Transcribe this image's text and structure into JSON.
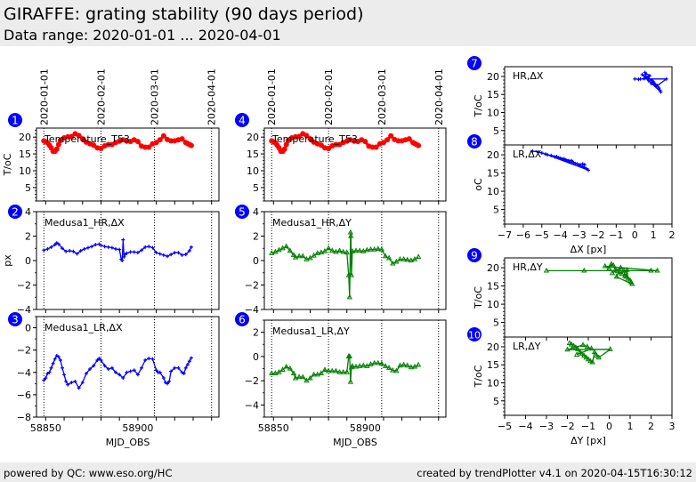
{
  "header": {
    "title": "GIRAFFE: grating stability (90 days period)",
    "subtitle": "Data range: 2020-01-01 ... 2020-04-01"
  },
  "footer": {
    "left": "powered by QC: www.eso.org/HC",
    "right": "created by trendPlotter v4.1 on 2020-04-15T16:30:12"
  },
  "colors": {
    "temperature": "#ff0000",
    "dx": "#0000ff",
    "dy": "#008000",
    "badge": "#0000ff"
  },
  "chart_data": [
    {
      "id": 1,
      "type": "line",
      "label": "Temperature_T53",
      "ylabel": "T/oC",
      "xlabel": "",
      "xlim": [
        58845,
        58944
      ],
      "ylim": [
        1,
        22.7
      ],
      "yticks": [
        5,
        10,
        15,
        20
      ],
      "xticks": [
        58850,
        58900
      ],
      "show_xticklabels": false,
      "top_date_ticks": [
        {
          "mjd": 58849,
          "label": "2020-01-01"
        },
        {
          "mjd": 58880,
          "label": "2020-02-01"
        },
        {
          "mjd": 58909,
          "label": "2020-03-01"
        },
        {
          "mjd": 58940,
          "label": "2020-04-01"
        }
      ],
      "series": [
        {
          "name": "Temperature_T53",
          "color": "#ff0000",
          "marker": "circle",
          "x": [
            58849,
            58850,
            58851,
            58852,
            58853,
            58854,
            58855,
            58856,
            58857,
            58858,
            58860,
            58862,
            58864,
            58866,
            58868,
            58870,
            58872,
            58874,
            58876,
            58878,
            58880,
            58882,
            58884,
            58886,
            58888,
            58890,
            58892,
            58894,
            58896,
            58898,
            58900,
            58902,
            58904,
            58906,
            58908,
            58910,
            58912,
            58914,
            58916,
            58918,
            58920,
            58922,
            58924,
            58926,
            58927,
            58928,
            58929
          ],
          "y": [
            18.9,
            18.6,
            18.3,
            17.6,
            16.8,
            15.8,
            15.8,
            16.4,
            17.8,
            19.0,
            19.8,
            20.1,
            20.2,
            21.0,
            20.5,
            19.5,
            18.5,
            18.0,
            17.6,
            16.8,
            16.6,
            17.4,
            17.8,
            17.8,
            18.4,
            18.8,
            19.2,
            18.8,
            18.7,
            19.2,
            18.7,
            17.3,
            17.0,
            17.0,
            18.0,
            18.4,
            19.2,
            20.4,
            19.3,
            18.9,
            18.9,
            19.2,
            19.5,
            18.4,
            18.1,
            17.8,
            17.5
          ]
        }
      ]
    },
    {
      "id": 2,
      "type": "line",
      "label": "Medusa1_HR,ΔX",
      "ylabel": "px",
      "xlabel": "",
      "xlim": [
        58845,
        58944
      ],
      "ylim": [
        -4,
        4
      ],
      "yticks": [
        -4,
        -2,
        0,
        2,
        4
      ],
      "xticks": [
        58850,
        58900
      ],
      "show_xticklabels": false,
      "series": [
        {
          "name": "Medusa1_HR,ΔX",
          "color": "#0000ff",
          "marker": "plus",
          "x": [
            58849,
            58851,
            58853,
            58855,
            58856,
            58857,
            58859,
            58861,
            58863,
            58865,
            58867,
            58869,
            58871,
            58873,
            58875,
            58877,
            58879,
            58880,
            58882,
            58884,
            58886,
            58888,
            58890,
            58891,
            58891.5,
            58892,
            58892.5,
            58893,
            58894,
            58896,
            58898,
            58900,
            58902,
            58904,
            58906,
            58908,
            58910,
            58912,
            58914,
            58916,
            58918,
            58920,
            58922,
            58924,
            58926,
            58928,
            58929
          ],
          "y": [
            0.85,
            0.95,
            1.1,
            1.3,
            1.45,
            1.35,
            1.0,
            0.75,
            0.8,
            0.75,
            0.55,
            0.8,
            0.95,
            1.05,
            1.15,
            1.3,
            1.35,
            1.25,
            1.15,
            1.1,
            1.05,
            0.95,
            0.9,
            0.1,
            0.0,
            1.7,
            0.3,
            0.5,
            0.6,
            0.7,
            0.7,
            0.65,
            0.85,
            1.1,
            1.15,
            1.05,
            0.65,
            0.55,
            0.45,
            0.35,
            0.5,
            0.65,
            0.65,
            0.45,
            0.5,
            0.8,
            1.1
          ]
        }
      ]
    },
    {
      "id": 3,
      "type": "line",
      "label": "Medusa1_LR,ΔX",
      "ylabel": "",
      "xlabel": "MJD_OBS",
      "xlim": [
        58845,
        58944
      ],
      "ylim": [
        -8,
        1
      ],
      "yticks": [
        -8,
        -6,
        -4,
        -2,
        0
      ],
      "xticks": [
        58850,
        58900
      ],
      "show_xticklabels": true,
      "series": [
        {
          "name": "Medusa1_LR,ΔX",
          "color": "#0000ff",
          "marker": "plus",
          "x": [
            58849,
            58850,
            58851,
            58852,
            58853,
            58854,
            58855,
            58856,
            58857,
            58858,
            58859,
            58860,
            58861,
            58862,
            58864,
            58866,
            58868,
            58870,
            58872,
            58874,
            58876,
            58878,
            58879,
            58880,
            58882,
            58884,
            58886,
            58888,
            58890,
            58892,
            58894,
            58896,
            58898,
            58900,
            58902,
            58904,
            58906,
            58908,
            58910,
            58911,
            58912,
            58914,
            58915,
            58916,
            58917,
            58918,
            58920,
            58922,
            58924,
            58925,
            58926,
            58927,
            58928,
            58929
          ],
          "y": [
            -4.7,
            -4.5,
            -4.1,
            -4.0,
            -3.6,
            -3.2,
            -2.8,
            -2.5,
            -2.6,
            -2.9,
            -3.6,
            -4.2,
            -4.8,
            -5.1,
            -4.9,
            -4.8,
            -5.4,
            -4.9,
            -4.1,
            -3.7,
            -3.4,
            -2.9,
            -2.75,
            -2.9,
            -3.4,
            -3.7,
            -3.6,
            -4.0,
            -4.2,
            -4.5,
            -4.0,
            -3.9,
            -3.8,
            -4.2,
            -3.6,
            -2.9,
            -2.75,
            -2.8,
            -3.8,
            -4.0,
            -4.0,
            -4.5,
            -4.9,
            -5.0,
            -4.8,
            -3.9,
            -3.6,
            -3.6,
            -4.0,
            -4.1,
            -3.6,
            -3.3,
            -3.0,
            -2.7
          ]
        }
      ]
    },
    {
      "id": 4,
      "type": "line",
      "label": "Temperature_T53",
      "ylabel": "",
      "xlabel": "",
      "xlim": [
        58845,
        58944
      ],
      "ylim": [
        1,
        22.7
      ],
      "yticks": [
        5,
        10,
        15,
        20
      ],
      "xticks": [
        58850,
        58900
      ],
      "show_xticklabels": false,
      "top_date_ticks": [
        {
          "mjd": 58849,
          "label": "2020-01-01"
        },
        {
          "mjd": 58880,
          "label": "2020-02-01"
        },
        {
          "mjd": 58909,
          "label": "2020-03-01"
        },
        {
          "mjd": 58940,
          "label": "2020-04-01"
        }
      ],
      "series": [
        {
          "name": "Temperature_T53",
          "color": "#ff0000",
          "marker": "circle",
          "same_as_panel": 1
        }
      ]
    },
    {
      "id": 5,
      "type": "line",
      "label": "Medusa1_HR,ΔY",
      "ylabel": "",
      "xlabel": "",
      "xlim": [
        58845,
        58944
      ],
      "ylim": [
        -4,
        4
      ],
      "yticks": [
        -4,
        -2,
        0,
        2,
        4
      ],
      "xticks": [
        58850,
        58900
      ],
      "show_xticklabels": false,
      "series": [
        {
          "name": "Medusa1_HR,ΔY",
          "color": "#008000",
          "marker": "triangle",
          "x": [
            58849,
            58851,
            58853,
            58855,
            58857,
            58859,
            58861,
            58862,
            58864,
            58866,
            58868,
            58870,
            58872,
            58874,
            58876,
            58878,
            58880,
            58882,
            58884,
            58886,
            58888,
            58890,
            58891,
            58891.5,
            58892,
            58892.2,
            58892.5,
            58893,
            58895,
            58897,
            58899,
            58901,
            58903,
            58905,
            58907,
            58909,
            58911,
            58913,
            58915,
            58917,
            58919,
            58921,
            58923,
            58925,
            58927,
            58929
          ],
          "y": [
            0.6,
            0.7,
            0.85,
            1.0,
            1.15,
            0.8,
            0.45,
            0.25,
            0.35,
            0.35,
            0.1,
            0.2,
            0.4,
            0.6,
            0.65,
            0.75,
            1.0,
            0.8,
            0.7,
            0.8,
            0.7,
            0.65,
            -1.2,
            -3.0,
            2.3,
            2.0,
            -1.2,
            0.75,
            0.8,
            0.8,
            0.75,
            0.85,
            0.9,
            0.9,
            0.95,
            0.9,
            0.35,
            0.2,
            -0.25,
            -0.1,
            0.1,
            0.1,
            0.05,
            0.0,
            0.1,
            0.3
          ]
        }
      ]
    },
    {
      "id": 6,
      "type": "line",
      "label": "Medusa1_LR,ΔY",
      "ylabel": "",
      "xlabel": "MJD_OBS",
      "xlim": [
        58845,
        58944
      ],
      "ylim": [
        -5,
        3
      ],
      "yticks": [
        -4,
        -2,
        0,
        2
      ],
      "xticks": [
        58850,
        58900
      ],
      "show_xticklabels": true,
      "series": [
        {
          "name": "Medusa1_LR,ΔY",
          "color": "#008000",
          "marker": "triangle",
          "x": [
            58849,
            58851,
            58853,
            58855,
            58857,
            58859,
            58861,
            58862,
            58864,
            58866,
            58868,
            58870,
            58872,
            58874,
            58876,
            58878,
            58880,
            58882,
            58884,
            58886,
            58888,
            58890,
            58891,
            58891.5,
            58892,
            58892.5,
            58893,
            58895,
            58897,
            58899,
            58901,
            58903,
            58905,
            58907,
            58909,
            58911,
            58913,
            58915,
            58917,
            58919,
            58921,
            58923,
            58925,
            58927,
            58929
          ],
          "y": [
            -1.4,
            -1.4,
            -1.3,
            -1.1,
            -0.85,
            -1.0,
            -1.4,
            -1.8,
            -1.7,
            -1.7,
            -2.0,
            -1.8,
            -1.5,
            -1.5,
            -1.4,
            -1.1,
            -1.2,
            -1.2,
            -1.2,
            -1.3,
            -1.3,
            -1.3,
            0.0,
            0.0,
            -2.1,
            -0.9,
            -0.8,
            -0.85,
            -0.8,
            -0.75,
            -0.8,
            -0.65,
            -0.55,
            -0.55,
            -0.6,
            -0.8,
            -0.95,
            -1.15,
            -1.2,
            -0.75,
            -0.7,
            -0.75,
            -0.9,
            -0.85,
            -0.7
          ]
        }
      ]
    },
    {
      "id": 7,
      "type": "scatter",
      "label": "HR,ΔX",
      "ylabel": "T/oC",
      "xlabel": "",
      "xlim": [
        -7,
        2
      ],
      "ylim": [
        1,
        22.7
      ],
      "yticks": [
        5,
        10,
        15,
        20
      ],
      "xticks": [
        -7,
        -6,
        -5,
        -4,
        -3,
        -2,
        -1,
        0,
        1,
        2
      ],
      "show_xticklabels": false,
      "series": [
        {
          "name": "HR,ΔX vs T",
          "color": "#0000ff",
          "marker": "plus",
          "x": [
            0.0,
            0.2,
            0.5,
            0.6,
            0.55,
            0.8,
            0.7,
            0.9,
            1.0,
            0.9,
            1.1,
            1.2,
            1.0,
            1.3,
            1.35,
            1.4,
            0.4,
            0.6,
            0.75,
            1.15,
            1.7,
            0.3
          ],
          "y": [
            19.3,
            19.2,
            19.4,
            20.6,
            21.1,
            20.2,
            19.7,
            19.0,
            18.5,
            18.0,
            17.8,
            17.5,
            18.3,
            16.8,
            16.2,
            15.7,
            20.5,
            20.0,
            18.8,
            17.2,
            19.3,
            19.3
          ]
        }
      ]
    },
    {
      "id": 8,
      "type": "scatter",
      "label": "LR,ΔX",
      "ylabel": "oC",
      "xlabel": "ΔX [px]",
      "xlim": [
        -7,
        2
      ],
      "ylim": [
        1,
        22.7
      ],
      "yticks": [
        5,
        10,
        15,
        20
      ],
      "xticks": [
        -7,
        -6,
        -5,
        -4,
        -3,
        -2,
        -1,
        0,
        1,
        2
      ],
      "show_xticklabels": true,
      "series": [
        {
          "name": "LR,ΔX vs T",
          "color": "#0000ff",
          "marker": "plus",
          "x": [
            -5.5,
            -5.2,
            -5.0,
            -4.8,
            -4.5,
            -4.3,
            -4.1,
            -4.0,
            -3.9,
            -3.7,
            -3.6,
            -3.5,
            -3.3,
            -3.2,
            -3.0,
            -2.9,
            -2.8,
            -2.7,
            -2.6,
            -2.5,
            -4.7,
            -4.2,
            -3.8,
            -3.4,
            -3.1,
            -2.8,
            -2.7
          ],
          "y": [
            21.0,
            20.8,
            20.5,
            20.2,
            19.8,
            19.4,
            19.2,
            19.0,
            18.8,
            18.5,
            18.3,
            18.0,
            17.8,
            17.6,
            17.2,
            17.0,
            16.8,
            16.5,
            16.2,
            15.8,
            20.0,
            19.5,
            18.9,
            18.4,
            17.5,
            17.5,
            17.3
          ]
        }
      ]
    },
    {
      "id": 9,
      "type": "scatter",
      "label": "HR,ΔY",
      "ylabel": "T/oC",
      "xlabel": "",
      "xlim": [
        -5,
        3
      ],
      "ylim": [
        1,
        22.7
      ],
      "yticks": [
        5,
        10,
        15,
        20
      ],
      "xticks": [
        -5,
        -4,
        -3,
        -2,
        -1,
        0,
        1,
        2,
        3
      ],
      "show_xticklabels": false,
      "series": [
        {
          "name": "HR,ΔY vs T",
          "color": "#008000",
          "marker": "triangle",
          "x": [
            -3.0,
            -1.2,
            2.0,
            2.3,
            -0.2,
            0.0,
            0.1,
            0.2,
            0.3,
            0.4,
            0.5,
            0.6,
            0.7,
            0.75,
            0.8,
            0.85,
            0.9,
            1.0,
            1.05,
            1.1,
            0.35,
            0.55,
            0.15
          ],
          "y": [
            19.2,
            19.2,
            19.2,
            19.2,
            20.4,
            19.9,
            21.0,
            20.6,
            19.5,
            19.0,
            18.7,
            18.3,
            19.2,
            17.8,
            17.5,
            19.4,
            17.0,
            16.5,
            16.0,
            15.5,
            17.5,
            20.0,
            18.5
          ]
        }
      ]
    },
    {
      "id": 10,
      "type": "scatter",
      "label": "LR,ΔY",
      "ylabel": "T/oC",
      "xlabel": "ΔY [px]",
      "xlim": [
        -5,
        3
      ],
      "ylim": [
        1,
        22.7
      ],
      "yticks": [
        5,
        10,
        15,
        20
      ],
      "xticks": [
        -5,
        -4,
        -3,
        -2,
        -1,
        0,
        1,
        2,
        3
      ],
      "show_xticklabels": true,
      "series": [
        {
          "name": "LR,ΔY vs T",
          "color": "#008000",
          "marker": "triangle",
          "x": [
            -1.9,
            -1.8,
            -1.7,
            -1.6,
            -1.5,
            -1.4,
            -1.3,
            -1.2,
            -1.1,
            -1.0,
            -0.9,
            -0.8,
            -0.7,
            -0.6,
            -0.5,
            0.05,
            -2.0,
            -1.25,
            -1.05,
            -0.85,
            -1.55
          ],
          "y": [
            21.0,
            20.6,
            20.2,
            19.8,
            19.3,
            18.5,
            18.0,
            17.5,
            17.0,
            16.5,
            16.0,
            15.7,
            18.5,
            17.5,
            17.0,
            19.3,
            19.2,
            20.5,
            20.0,
            19.5,
            17.8
          ]
        }
      ]
    }
  ]
}
